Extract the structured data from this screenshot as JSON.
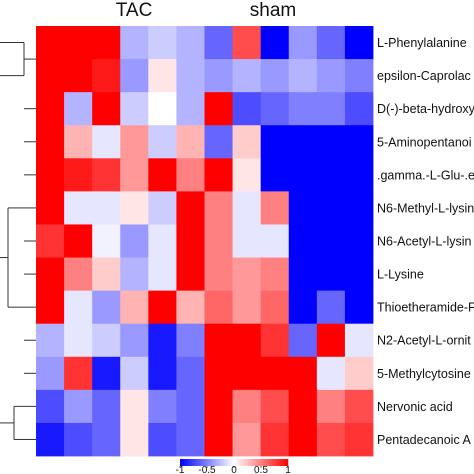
{
  "chart_data": {
    "type": "heatmap",
    "groups": [
      "TAC",
      "sham"
    ],
    "rows": [
      "L-Phenylalanine",
      "epsilon-Caprolac",
      "D(-)-beta-hydroxy",
      "5-Aminopentanoi",
      ".gamma.-L-Glu-.e",
      "N6-Methyl-L-lysin",
      "N6-Acetyl-L-lysin",
      "L-Lysine",
      "Thioetheramide-F",
      "N2-Acetyl-L-ornit",
      "5-Methylcytosine",
      "Nervonic acid",
      "Pentadecanoic A"
    ],
    "columns": 12,
    "values": [
      [
        1,
        1,
        1,
        -0.3,
        -0.2,
        -0.3,
        -0.6,
        0.7,
        -1,
        -0.4,
        -0.6,
        -1
      ],
      [
        1,
        1,
        0.9,
        -0.4,
        0.1,
        -0.3,
        -0.4,
        -0.3,
        -0.4,
        -0.3,
        -0.4,
        -0.5
      ],
      [
        1,
        -0.3,
        1,
        -0.2,
        0,
        -0.3,
        1,
        -0.7,
        -0.6,
        -0.5,
        -0.5,
        -0.7
      ],
      [
        1,
        0.3,
        -0.1,
        0.4,
        -0.2,
        0.3,
        -0.6,
        0.2,
        -1,
        -1,
        -1,
        -1
      ],
      [
        1,
        0.9,
        0.8,
        0.4,
        1,
        0.5,
        1,
        0.1,
        -1,
        -1,
        -1,
        -1
      ],
      [
        1,
        -0.1,
        -0.1,
        0.1,
        -0.2,
        1,
        0.5,
        -0.1,
        0.5,
        -1,
        -1,
        -1
      ],
      [
        0.8,
        1,
        -0.05,
        -0.4,
        -0.1,
        1,
        0.5,
        -0.1,
        -0.1,
        -1,
        -1,
        -1
      ],
      [
        1,
        0.5,
        0.2,
        -0.3,
        -0.1,
        1,
        0.5,
        0.4,
        0.5,
        -1,
        -1,
        -1
      ],
      [
        1,
        -0.1,
        -0.4,
        0.3,
        1,
        0.3,
        0.6,
        0.4,
        0.6,
        -1,
        -0.6,
        -1
      ],
      [
        -0.3,
        -0.1,
        -0.2,
        -0.4,
        -0.9,
        -0.5,
        1,
        1,
        0.8,
        -0.6,
        1,
        -0.1
      ],
      [
        -0.4,
        0.8,
        -0.9,
        -0.2,
        -0.9,
        -0.6,
        1,
        1,
        1,
        1,
        -0.1,
        0.2
      ],
      [
        -0.7,
        -0.4,
        -0.6,
        0.1,
        -0.5,
        -0.6,
        1,
        0.5,
        0.7,
        1,
        0.5,
        0.7
      ],
      [
        -0.9,
        -0.7,
        -0.6,
        0.1,
        -0.7,
        -0.6,
        1,
        0.4,
        0.8,
        1,
        0.7,
        0.8
      ]
    ],
    "color_scale": {
      "min": -1,
      "max": 1,
      "low_color": "#0000ff",
      "mid_color": "#ffffff",
      "high_color": "#ff0000",
      "ticks": [
        -1,
        -0.5,
        0,
        0.5,
        1
      ],
      "tick_labels": [
        "-1",
        "-0.5",
        "0",
        "0.5",
        "1"
      ],
      "placement": "bottom"
    },
    "dendrogram": "rows",
    "legend": "bottom-center"
  }
}
